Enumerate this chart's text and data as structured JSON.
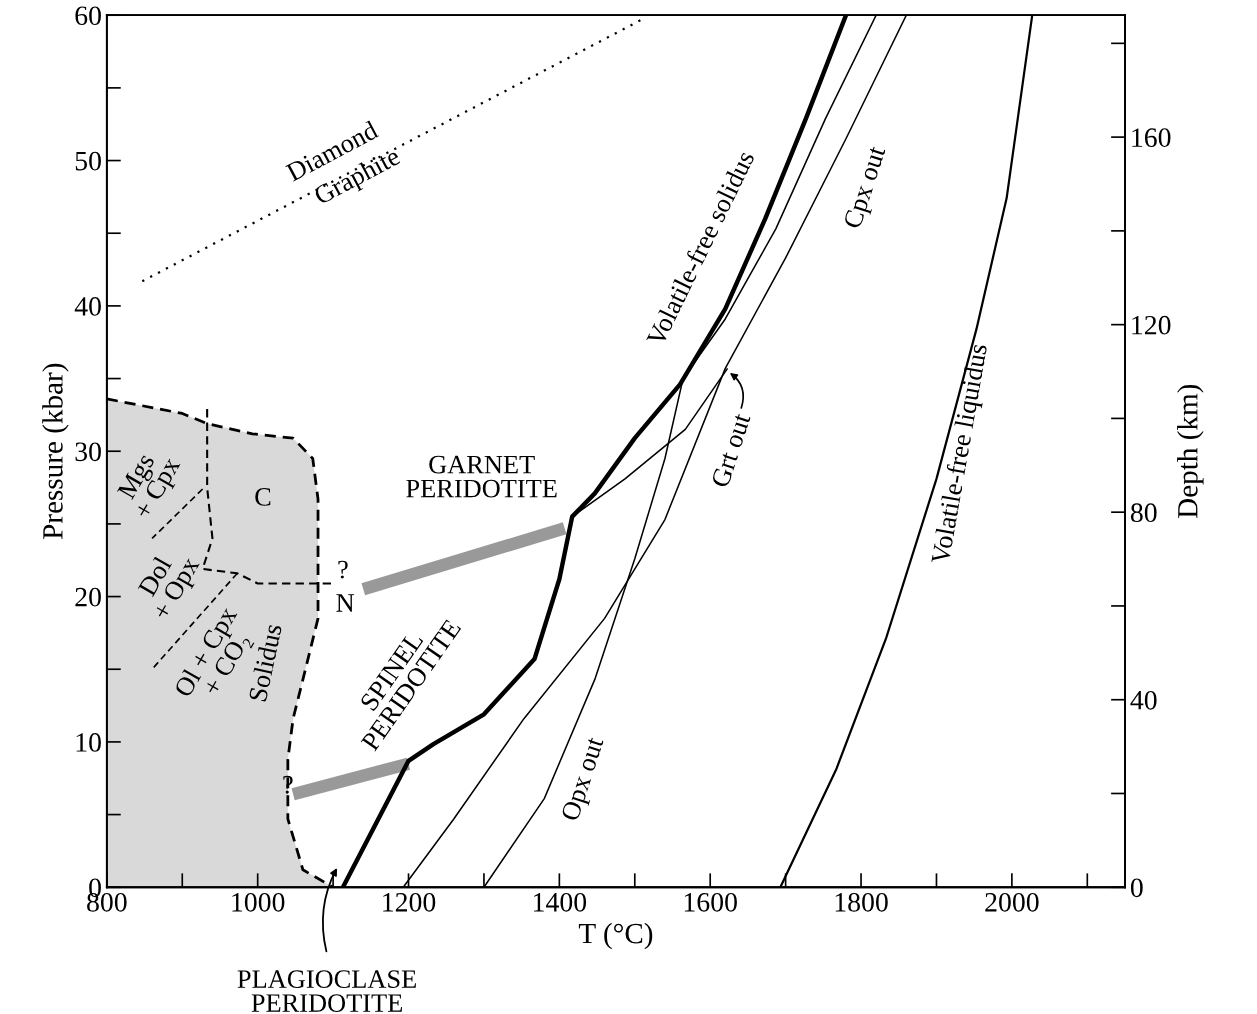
{
  "chart_data": {
    "type": "line",
    "xlabel": "T (°C)",
    "ylabel": "Pressure (kbar)",
    "y2label": "Depth (km)",
    "xlim": [
      800,
      2150
    ],
    "ylim": [
      0,
      60
    ],
    "y2lim": [
      0,
      186
    ],
    "xticks": [
      800,
      {
        "value": 900,
        "label": null
      },
      1000,
      {
        "value": 1100,
        "label": null
      },
      1200,
      {
        "value": 1300,
        "label": null
      },
      1400,
      {
        "value": 1500,
        "label": null
      },
      1600,
      {
        "value": 1700,
        "label": null
      },
      1800,
      {
        "value": 1900,
        "label": null
      },
      2000,
      {
        "value": 2100,
        "label": null
      }
    ],
    "yticks": [
      0,
      {
        "value": 5,
        "label": null
      },
      10,
      {
        "value": 15,
        "label": null
      },
      20,
      {
        "value": 25,
        "label": null
      },
      30,
      {
        "value": 35,
        "label": null
      },
      40,
      {
        "value": 45,
        "label": null
      },
      50,
      {
        "value": 55,
        "label": null
      },
      60
    ],
    "y2ticks": [
      0,
      {
        "value": 20,
        "label": null
      },
      40,
      {
        "value": 60,
        "label": null
      },
      80,
      {
        "value": 100,
        "label": null
      },
      120,
      {
        "value": 140,
        "label": null
      },
      160,
      {
        "value": 180,
        "label": null
      }
    ],
    "grid": false,
    "legend": false,
    "marker": "none",
    "series": [
      {
        "color": "#999999",
        "x": [
          1140,
          1407
        ],
        "values": [
          20.5,
          24.7
        ]
      },
      {
        "color": "#999999",
        "x": [
          1047,
          1200
        ],
        "values": [
          6.4,
          8.5
        ]
      },
      {
        "color": "#000000",
        "x": [
          1113,
          1200,
          1233,
          1300,
          1367,
          1400,
          1417,
          1447,
          1500,
          1560,
          1620,
          1673,
          1727,
          1780
        ],
        "values": [
          0,
          8.7,
          9.85,
          11.9,
          15.7,
          21.2,
          25.5,
          27.1,
          30.9,
          34.6,
          39.8,
          46,
          52.9,
          60
        ]
      },
      {
        "color": "#000000",
        "x": [
          1193,
          1260,
          1353,
          1460,
          1540,
          1620,
          1700,
          1780,
          1860
        ],
        "values": [
          0,
          4.7,
          11.6,
          18.5,
          25.3,
          35.7,
          43.3,
          51.5,
          60
        ]
      },
      {
        "color": "#000000",
        "x": [
          1300,
          1380,
          1447,
          1500,
          1540,
          1564,
          1620,
          1687,
          1753,
          1820
        ],
        "values": [
          0,
          6.1,
          14.3,
          22.6,
          29.5,
          35,
          39.1,
          45.3,
          52.9,
          60
        ]
      },
      {
        "color": "#000000",
        "x": [
          1417,
          1487,
          1567,
          1623
        ],
        "values": [
          25.5,
          28.1,
          31.5,
          35.7
        ]
      },
      {
        "color": "#000000",
        "x": [
          1693,
          1767,
          1833,
          1900,
          1953,
          1993,
          2027
        ],
        "values": [
          0,
          8.1,
          17.1,
          28.1,
          38.4,
          47.4,
          60
        ]
      },
      {
        "color": "#000000",
        "line_style": "dotted",
        "x": [
          847,
          1513
        ],
        "values": [
          41.7,
          59.8
        ]
      },
      {
        "color": "#000000",
        "line_style": "dashed",
        "x": [
          933,
          933,
          940,
          927,
          973,
          1000,
          1100
        ],
        "values": [
          32.9,
          27.5,
          24,
          21.9,
          21.6,
          20.9,
          20.9
        ]
      },
      {
        "color": "#000000",
        "line_style": "dashed",
        "x": [
          973,
          860
        ],
        "values": [
          21.6,
          15
        ]
      },
      {
        "color": "#000000",
        "line_style": "dashed",
        "x": [
          927,
          860
        ],
        "values": [
          27.4,
          24
        ]
      },
      {
        "type": "area",
        "color": "#d9d9d9",
        "line_style": "dashed",
        "x": [
          800,
          900,
          933,
          993,
          1047,
          1073,
          1080,
          1080,
          1060,
          1047,
          1040,
          1040,
          1060,
          1100
        ],
        "values": [
          33.6,
          32.6,
          31.9,
          31.2,
          30.9,
          29.5,
          26.7,
          18.5,
          14.3,
          11.6,
          8.8,
          4.7,
          1.2,
          0
        ]
      }
    ],
    "annotations": [
      "Diamond",
      "Graphite",
      "Volatile-free solidus",
      "Cpx out",
      "Volatile-free liquidus",
      "Grt out",
      "GARNET\nPERIDOTITE",
      "SPINEL\nPERIDOTITE",
      "Opx out",
      "PLAGIOCLASE\nPERIDOTITE",
      "Solidus",
      "C",
      "Mgs\n+ Cpx",
      "Dol\n+ Opx",
      "Ol + Cpx\n+ CO₂",
      "?",
      "N",
      "?"
    ]
  }
}
